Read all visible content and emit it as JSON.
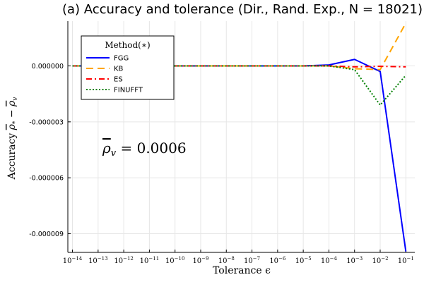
{
  "chart_data": {
    "type": "line",
    "title": "(a) Accuracy and tolerance (Dir., Rand. Exp., N = 18021)",
    "xlabel": "Tolerance ϵ",
    "ylabel": "Accuracy ρ̅* − ρ̅v",
    "x_scale": "log",
    "xlim": [
      1e-14,
      0.1
    ],
    "ylim": [
      -1e-05,
      2.4e-06
    ],
    "x_ticks": [
      {
        "v": -14,
        "base": "10",
        "exp": "−14"
      },
      {
        "v": -13,
        "base": "10",
        "exp": "−13"
      },
      {
        "v": -12,
        "base": "10",
        "exp": "−12"
      },
      {
        "v": -11,
        "base": "10",
        "exp": "−11"
      },
      {
        "v": -10,
        "base": "10",
        "exp": "−10"
      },
      {
        "v": -9,
        "base": "10",
        "exp": "−9"
      },
      {
        "v": -8,
        "base": "10",
        "exp": "−8"
      },
      {
        "v": -7,
        "base": "10",
        "exp": "−7"
      },
      {
        "v": -6,
        "base": "10",
        "exp": "−6"
      },
      {
        "v": -5,
        "base": "10",
        "exp": "−5"
      },
      {
        "v": -4,
        "base": "10",
        "exp": "−4"
      },
      {
        "v": -3,
        "base": "10",
        "exp": "−3"
      },
      {
        "v": -2,
        "base": "10",
        "exp": "−2"
      },
      {
        "v": -1,
        "base": "10",
        "exp": "−1"
      }
    ],
    "y_ticks": [
      {
        "v": 0,
        "label": "0.000000"
      },
      {
        "v": -3e-06,
        "label": "-0.000003"
      },
      {
        "v": -6e-06,
        "label": "-0.000006"
      },
      {
        "v": -9e-06,
        "label": "-0.000009"
      }
    ],
    "grid": true,
    "legend": {
      "title": "Method(∗)",
      "placement": "top-left"
    },
    "annotation": "ρ̅v = 0.0006",
    "series": [
      {
        "name": "FGG",
        "color": "#0000ff",
        "dash": "solid",
        "x": [
          1e-14,
          1e-13,
          1e-12,
          1e-11,
          1e-10,
          1e-09,
          1e-08,
          1e-07,
          1e-06,
          1e-05,
          0.0001,
          0.001,
          0.01,
          0.1
        ],
        "y": [
          0,
          0,
          0,
          0,
          0,
          0,
          0,
          0,
          0,
          0,
          5e-08,
          3.5e-07,
          -3e-07,
          -9.95e-06
        ]
      },
      {
        "name": "KB",
        "color": "#ffa500",
        "dash": "long",
        "x": [
          1e-14,
          1e-13,
          1e-12,
          1e-11,
          1e-10,
          1e-09,
          1e-08,
          1e-07,
          1e-06,
          1e-05,
          0.0001,
          0.001,
          0.01,
          0.1
        ],
        "y": [
          0,
          0,
          0,
          0,
          0,
          0,
          0,
          0,
          0,
          0,
          0,
          -1.5e-07,
          -2e-07,
          2.3e-06
        ]
      },
      {
        "name": "ES",
        "color": "#ff0000",
        "dash": "dashdot",
        "x": [
          1e-14,
          1e-13,
          1e-12,
          1e-11,
          1e-10,
          1e-09,
          1e-08,
          1e-07,
          1e-06,
          1e-05,
          0.0001,
          0.001,
          0.01,
          0.1
        ],
        "y": [
          0,
          0,
          0,
          0,
          0,
          0,
          0,
          0,
          0,
          0,
          0,
          -5e-08,
          -2e-08,
          -5e-08
        ]
      },
      {
        "name": "FINUFFT",
        "color": "#008000",
        "dash": "dot",
        "x": [
          1e-14,
          1e-13,
          1e-12,
          1e-11,
          1e-10,
          1e-09,
          1e-08,
          1e-07,
          1e-06,
          1e-05,
          0.0001,
          0.001,
          0.01,
          0.1
        ],
        "y": [
          0,
          0,
          0,
          0,
          0,
          0,
          0,
          0,
          0,
          0,
          0,
          -2e-07,
          -2.1e-06,
          -5e-07
        ]
      }
    ]
  }
}
